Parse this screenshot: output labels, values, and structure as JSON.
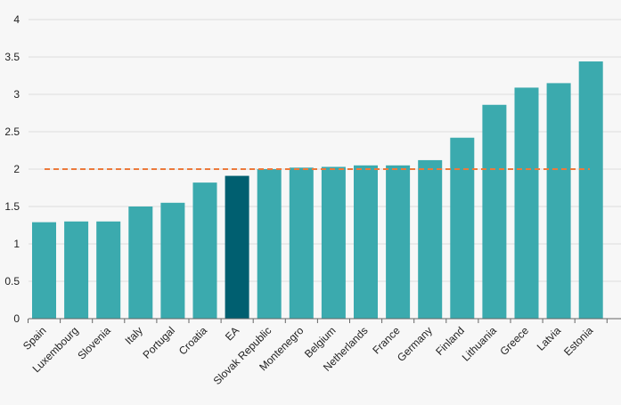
{
  "chart_data": {
    "type": "bar",
    "title": "",
    "xlabel": "",
    "ylabel": "",
    "ylim": [
      0,
      4
    ],
    "yticks": [
      "0",
      "0.5",
      "1",
      "1.5",
      "2",
      "2.5",
      "3",
      "3.5",
      "4"
    ],
    "grid": true,
    "legend": "none",
    "categories": [
      "Spain",
      "Luxembourg",
      "Slovenia",
      "Italy",
      "Portugal",
      "Croatia",
      "EA",
      "Slovak Republic",
      "Montenegro",
      "Belgium",
      "Netherlands",
      "France",
      "Germany",
      "Finland",
      "Lithuania",
      "Greece",
      "Latvia",
      "Estonia"
    ],
    "values": [
      1.29,
      1.3,
      1.3,
      1.5,
      1.55,
      1.82,
      1.91,
      2.0,
      2.02,
      2.03,
      2.05,
      2.05,
      2.12,
      2.42,
      2.86,
      3.09,
      3.15,
      3.44
    ],
    "highlight_category": "EA",
    "reference_line": 2.0,
    "colors": {
      "bar": "#3baaae",
      "highlight": "#005f70",
      "reference": "#ec7a3c",
      "grid": "#dddddd",
      "axis": "#666666"
    }
  }
}
